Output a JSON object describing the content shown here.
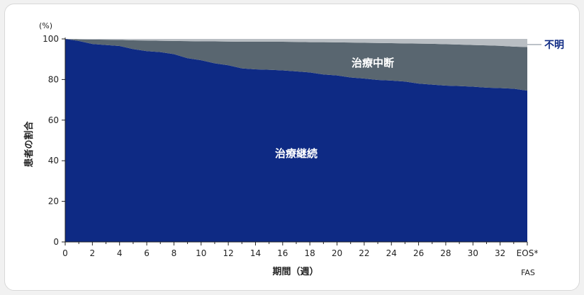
{
  "chart_data": {
    "type": "area",
    "unit_label": "(%)",
    "ylabel": "患者の割合",
    "xlabel": "期間（週）",
    "footnote": "FAS",
    "ylim": [
      0,
      100
    ],
    "y_ticks": [
      "0",
      "20",
      "40",
      "60",
      "80",
      "100"
    ],
    "x_ticks": [
      "0",
      "2",
      "4",
      "6",
      "8",
      "10",
      "12",
      "14",
      "16",
      "18",
      "20",
      "22",
      "24",
      "26",
      "28",
      "30",
      "32",
      "EOS*"
    ],
    "x": [
      0,
      1,
      2,
      3,
      4,
      5,
      6,
      7,
      8,
      9,
      10,
      11,
      12,
      13,
      14,
      15,
      16,
      17,
      18,
      19,
      20,
      21,
      22,
      23,
      24,
      25,
      26,
      27,
      28,
      29,
      30,
      31,
      32,
      33,
      34
    ],
    "stacked": true,
    "series": [
      {
        "name": "治療継続",
        "color": "#0e2a84",
        "values": [
          100,
          99,
          97.5,
          97,
          96.5,
          95,
          94,
          93.5,
          92.5,
          90.5,
          89.5,
          88,
          87,
          85.5,
          85,
          84.8,
          84.5,
          84,
          83.5,
          82.5,
          82,
          81,
          80.5,
          79.8,
          79.5,
          79,
          78,
          77.5,
          77,
          76.8,
          76.5,
          76,
          75.8,
          75.5,
          74.5
        ]
      },
      {
        "name": "治療中断",
        "color": "#596670",
        "values": [
          0,
          0.8,
          2.2,
          2.6,
          3,
          4.3,
          5.2,
          5.6,
          6.5,
          8.4,
          9.3,
          10.8,
          11.7,
          13.1,
          13.6,
          13.8,
          14.1,
          14.5,
          14.9,
          15.9,
          16.3,
          17.2,
          17.6,
          18.2,
          18.4,
          18.8,
          19.7,
          20.1,
          20.4,
          20.4,
          20.5,
          20.8,
          20.8,
          20.7,
          21.5
        ]
      },
      {
        "name": "不明",
        "color": "#b9bec3",
        "values": [
          0,
          0.2,
          0.3,
          0.4,
          0.5,
          0.7,
          0.8,
          0.9,
          1,
          1.1,
          1.2,
          1.2,
          1.3,
          1.4,
          1.4,
          1.4,
          1.4,
          1.5,
          1.6,
          1.6,
          1.7,
          1.8,
          1.9,
          2,
          2.1,
          2.2,
          2.3,
          2.4,
          2.6,
          2.8,
          3,
          3.2,
          3.4,
          3.8,
          4
        ]
      }
    ],
    "legend": "inline labels",
    "grid": false
  }
}
